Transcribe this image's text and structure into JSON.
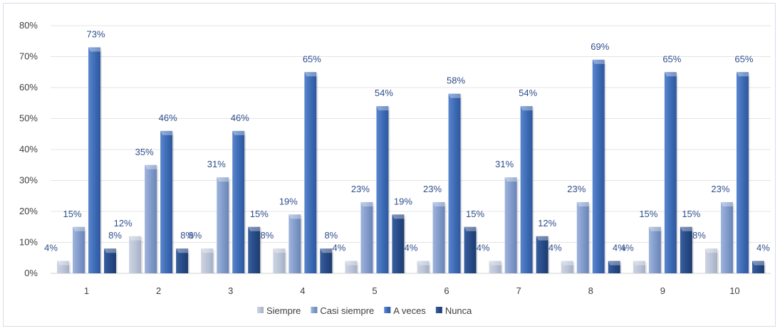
{
  "chart_data": {
    "type": "bar",
    "categories": [
      "1",
      "2",
      "3",
      "4",
      "5",
      "6",
      "7",
      "8",
      "9",
      "10"
    ],
    "series": [
      {
        "name": "Siempre",
        "values": [
          4,
          12,
          8,
          8,
          4,
          4,
          4,
          4,
          4,
          8
        ],
        "labels": [
          "4%",
          "12%",
          "8%",
          "8%",
          "4%",
          "4%",
          "4%",
          "4%",
          "4%",
          "8%"
        ],
        "color": "#b9c3d6"
      },
      {
        "name": "Casi siempre",
        "values": [
          15,
          35,
          31,
          19,
          23,
          23,
          31,
          23,
          15,
          23
        ],
        "labels": [
          "15%",
          "35%",
          "31%",
          "19%",
          "23%",
          "23%",
          "31%",
          "23%",
          "15%",
          "23%"
        ],
        "color": "#7f9ac9"
      },
      {
        "name": "A veces",
        "values": [
          73,
          46,
          46,
          65,
          54,
          58,
          54,
          69,
          65,
          65
        ],
        "labels": [
          "73%",
          "46%",
          "46%",
          "65%",
          "54%",
          "58%",
          "54%",
          "69%",
          "65%",
          "65%"
        ],
        "color": "#3c6ab5"
      },
      {
        "name": "Nunca",
        "values": [
          8,
          8,
          15,
          8,
          19,
          15,
          12,
          4,
          15,
          4
        ],
        "labels": [
          "8%",
          "8%",
          "15%",
          "8%",
          "19%",
          "15%",
          "12%",
          "4%",
          "15%",
          "4%"
        ],
        "color": "#274a86"
      }
    ],
    "yticks": [
      "0%",
      "10%",
      "20%",
      "30%",
      "40%",
      "50%",
      "60%",
      "70%",
      "80%"
    ],
    "ylim": [
      0,
      80
    ],
    "grid": true,
    "legend": "bottom-center",
    "title": "",
    "xlabel": "",
    "ylabel": ""
  }
}
